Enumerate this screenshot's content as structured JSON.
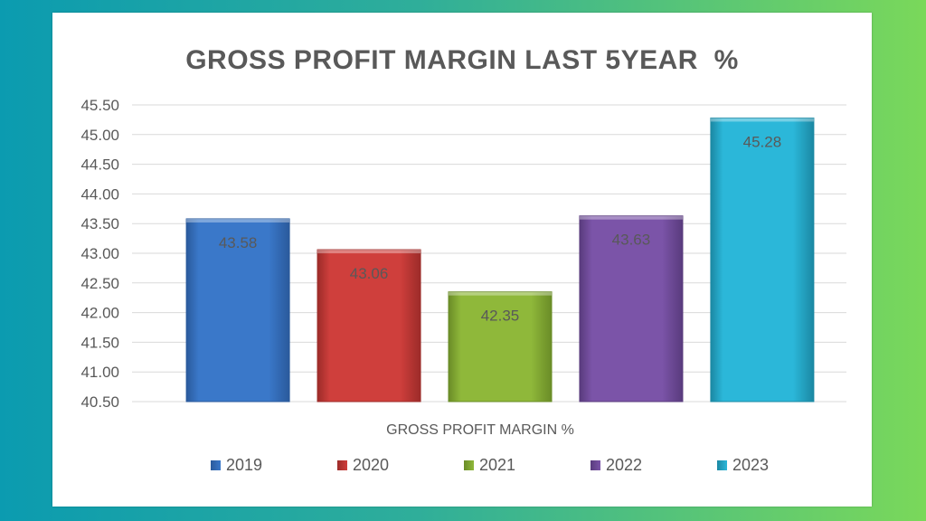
{
  "chart_data": {
    "type": "bar",
    "title": "GROSS PROFIT MARGIN LAST 5YEAR  %",
    "xlabel": "GROSS PROFIT MARGIN %",
    "ylabel": "",
    "ylim": [
      40.5,
      45.5
    ],
    "ytick_step": 0.5,
    "yticks": [
      "40.50",
      "41.00",
      "41.50",
      "42.00",
      "42.50",
      "43.00",
      "43.50",
      "44.00",
      "44.50",
      "45.00",
      "45.50"
    ],
    "grid": true,
    "legend_position": "bottom",
    "series": [
      {
        "name": "2019",
        "value": 43.58,
        "label": "43.58",
        "color": "#3a78c9",
        "dark": "#2a5a9c"
      },
      {
        "name": "2020",
        "value": 43.06,
        "label": "43.06",
        "color": "#cf3f3c",
        "dark": "#9c2b29"
      },
      {
        "name": "2021",
        "value": 42.35,
        "label": "42.35",
        "color": "#8fb83a",
        "dark": "#6a8c27"
      },
      {
        "name": "2022",
        "value": 43.63,
        "label": "43.63",
        "color": "#7b54a8",
        "dark": "#593b7d"
      },
      {
        "name": "2023",
        "value": 45.28,
        "label": "45.28",
        "color": "#2bb7d9",
        "dark": "#1b88a3"
      }
    ]
  }
}
